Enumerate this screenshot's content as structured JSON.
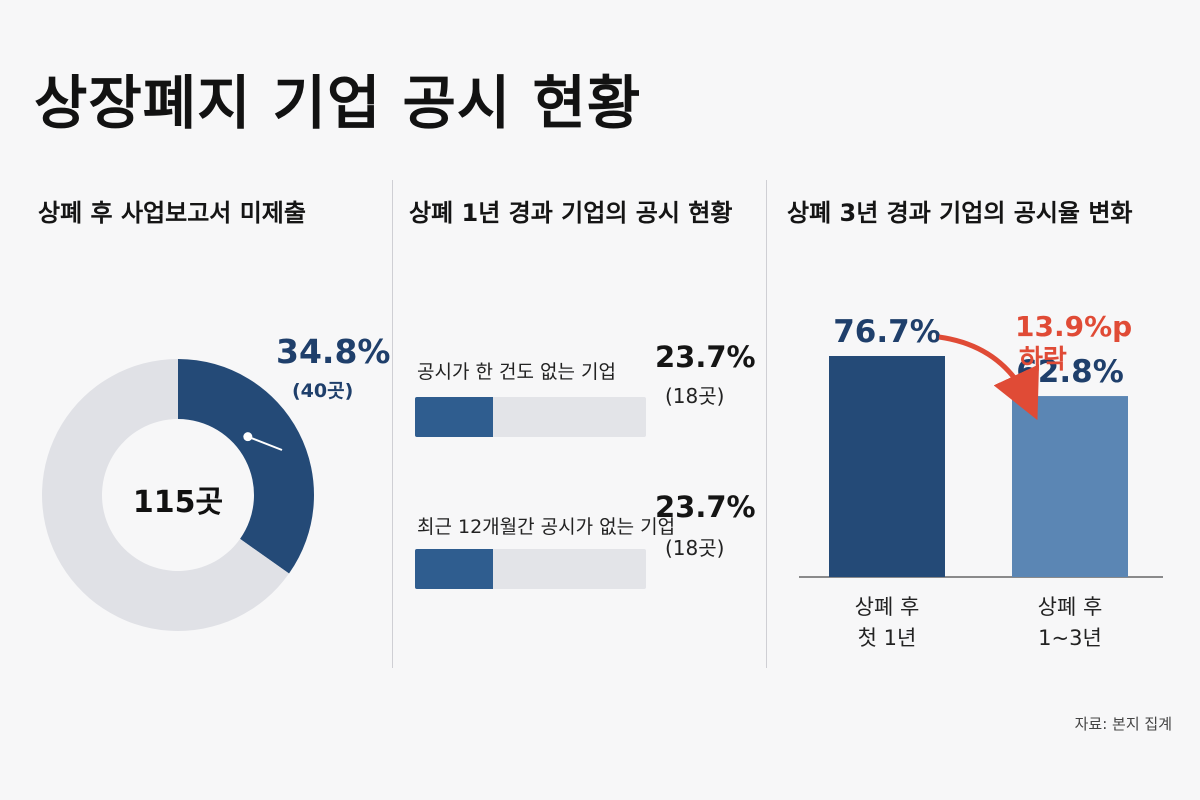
{
  "title": "상장폐지 기업 공시 현황",
  "source": "자료: 본지 집계",
  "colors": {
    "dark_blue": "#244a77",
    "light_blue": "#5b86b4",
    "bar_fill": "#2f5d8f",
    "grey": "#e0e1e6",
    "red": "#e04b36",
    "text_blue": "#1f3f6b"
  },
  "left_panel": {
    "title": "상폐 후 사업보고서 미제출",
    "center_label": "115곳",
    "highlight_pct": "34.8%",
    "highlight_count": "(40곳)"
  },
  "middle_panel": {
    "title": "상폐 1년 경과 기업의 공시 현황",
    "rows": [
      {
        "label": "공시가 한 건도 없는 기업",
        "pct": "23.7%",
        "count": "(18곳)",
        "value": 23.7
      },
      {
        "label": "최근 12개월간 공시가 없는 기업",
        "pct": "23.7%",
        "count": "(18곳)",
        "value": 23.7
      }
    ]
  },
  "right_panel": {
    "title": "상폐 3년 경과 기업의 공시율 변화",
    "annotation_line1": "13.9%p",
    "annotation_line2": "하락",
    "bars": [
      {
        "value_label": "76.7%",
        "cat_line1": "상폐 후",
        "cat_line2": "첫 1년"
      },
      {
        "value_label": "62.8%",
        "cat_line1": "상폐 후",
        "cat_line2": "1~3년"
      }
    ]
  },
  "chart_data": [
    {
      "type": "pie",
      "title": "상폐 후 사업보고서 미제출",
      "total_label": "115곳",
      "total": 115,
      "values": [
        34.8,
        65.2
      ],
      "counts": [
        40,
        75
      ]
    },
    {
      "type": "bar",
      "title": "상폐 1년 경과 기업의 공시 현황",
      "categories": [
        "공시가 한 건도 없는 기업",
        "최근 12개월간 공시가 없는 기업"
      ],
      "values": [
        23.7,
        23.7
      ],
      "counts": [
        18,
        18
      ],
      "orientation": "horizontal"
    },
    {
      "type": "bar",
      "title": "상폐 3년 경과 기업의 공시율 변화",
      "categories": [
        "상폐 후 첫 1년",
        "상폐 후 1~3년"
      ],
      "values": [
        76.7,
        62.8
      ],
      "annotation": "13.9%p 하락"
    }
  ]
}
